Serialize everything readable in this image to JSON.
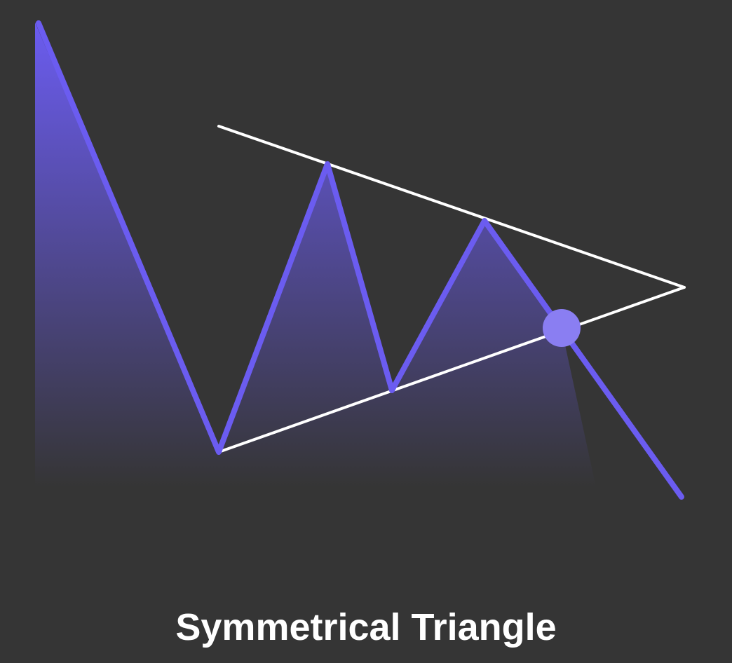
{
  "title": "Symmetrical Triangle",
  "colors": {
    "background": "#353535",
    "price_line": "#6b5cf0",
    "price_fill_top": "#6b5cf0",
    "price_fill_bottom": "#353535",
    "trendline": "#ffffff",
    "breakout_marker": "#8a7ef2"
  }
}
